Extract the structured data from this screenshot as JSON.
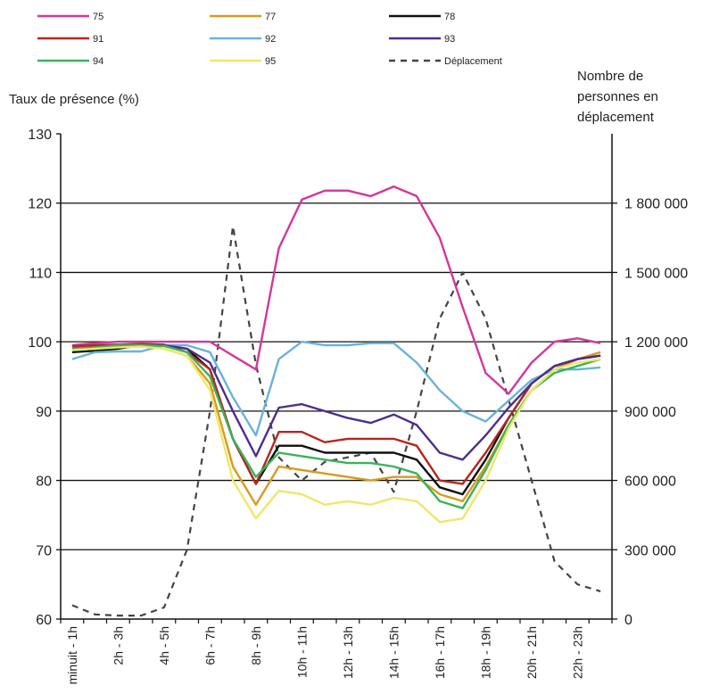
{
  "chart_data": {
    "type": "line",
    "y_left_label": "Taux de présence (%)",
    "y_right_label": [
      "Nombre de",
      "personnes en",
      "déplacement"
    ],
    "ylim_left": [
      60,
      130
    ],
    "yticks_left": [
      "60",
      "70",
      "80",
      "90",
      "100",
      "110",
      "120",
      "130"
    ],
    "ylim_right": [
      0,
      2100000
    ],
    "yticks_right": [
      "0",
      "300 000",
      "600 000",
      "900 000",
      "1 200 000",
      "1 500 000",
      "1 800 000"
    ],
    "x_labels": [
      "minuit - 1h",
      "2h - 3h",
      "4h - 5h",
      "6h - 7h",
      "8h - 9h",
      "10h - 11h",
      "12h - 13h",
      "14h - 15h",
      "16h - 17h",
      "18h - 19h",
      "20h - 21h",
      "22h - 23h"
    ],
    "grid": true,
    "legend_position": "top",
    "series": [
      {
        "name": "75",
        "color": "#d2379c",
        "values": [
          99.5,
          99.8,
          100,
          100,
          100,
          100,
          100,
          98,
          96,
          113.5,
          120.5,
          121.8,
          121.8,
          121,
          122.4,
          121,
          115,
          105,
          95.5,
          92.5,
          97,
          100,
          100.5,
          99.8
        ]
      },
      {
        "name": "77",
        "color": "#d99a1e",
        "values": [
          99,
          99.3,
          99.5,
          99.5,
          99,
          98,
          94,
          82,
          76.5,
          82,
          81.5,
          81,
          80.5,
          80,
          80.5,
          80.5,
          78,
          77,
          82,
          88,
          93,
          96,
          97.5,
          98.5
        ]
      },
      {
        "name": "78",
        "color": "#111111",
        "values": [
          98.5,
          98.7,
          99,
          99.5,
          99.5,
          99,
          96,
          86,
          79.5,
          85,
          85,
          84,
          84,
          84,
          84,
          83,
          79,
          78,
          83,
          89,
          94,
          96.5,
          97.5,
          98
        ]
      },
      {
        "name": "91",
        "color": "#b5261e",
        "values": [
          99.3,
          99.5,
          99.6,
          99.7,
          99.6,
          98.5,
          96,
          86,
          79.5,
          87,
          87,
          85.5,
          86,
          86,
          86,
          85,
          80,
          79.5,
          84,
          89,
          94,
          96.5,
          97.5,
          98
        ]
      },
      {
        "name": "92",
        "color": "#6ab2dc",
        "values": [
          97.5,
          98.5,
          98.6,
          98.6,
          99.5,
          99.5,
          98.5,
          92,
          86.5,
          97.5,
          100,
          99.5,
          99.5,
          99.8,
          99.8,
          97,
          93,
          90,
          88.5,
          91.5,
          94.5,
          96,
          96,
          96.3
        ]
      },
      {
        "name": "93",
        "color": "#4d2e8c",
        "values": [
          98.8,
          99.2,
          99.5,
          99.5,
          99.5,
          99,
          97,
          90,
          83.5,
          90.5,
          91,
          90,
          89,
          88.3,
          89.5,
          88,
          84,
          83,
          86.5,
          90.5,
          94,
          96.5,
          97.5,
          98
        ]
      },
      {
        "name": "94",
        "color": "#3bb35a",
        "values": [
          99,
          99.2,
          99.5,
          99.5,
          99.4,
          98.5,
          95,
          86,
          80.5,
          84,
          83.5,
          83,
          82.5,
          82.5,
          82,
          81,
          77,
          76,
          81.5,
          88,
          93,
          95.5,
          96.5,
          97.5
        ]
      },
      {
        "name": "95",
        "color": "#eee76a",
        "values": [
          98.8,
          99,
          99.2,
          99.3,
          99,
          98,
          93,
          80,
          74.5,
          78.5,
          78,
          76.5,
          77,
          76.5,
          77.5,
          77,
          74,
          74.5,
          80,
          87.5,
          93,
          96,
          97,
          97.5
        ]
      },
      {
        "name": "Déplacement",
        "color": "#444444",
        "dashed": true,
        "axis": "right",
        "values": [
          60000,
          20000,
          15000,
          15000,
          50000,
          300000,
          900000,
          1700000,
          1100000,
          700000,
          600000,
          680000,
          700000,
          720000,
          550000,
          900000,
          1300000,
          1500000,
          1300000,
          950000,
          600000,
          250000,
          150000,
          120000
        ]
      }
    ]
  }
}
